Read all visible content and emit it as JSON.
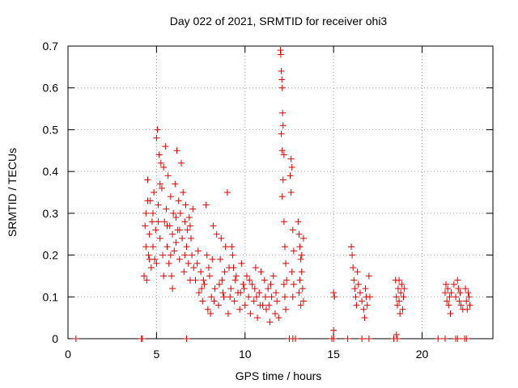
{
  "chart_data": {
    "type": "scatter",
    "title": "Day 022 of 2021, SRMTID for receiver ohi3",
    "xlabel": "GPS time / hours",
    "ylabel": "SRMTID / TECUs",
    "xlim": [
      0,
      24
    ],
    "ylim": [
      0,
      0.7
    ],
    "xticks": [
      0,
      5,
      10,
      15,
      20
    ],
    "yticks": [
      0,
      0.1,
      0.2,
      0.3,
      0.4,
      0.5,
      0.6,
      0.7
    ],
    "grid": true,
    "marker": "+",
    "series_color": "#e00000",
    "series": [
      {
        "name": "SRMTID",
        "points": [
          [
            0.45,
            0.0
          ],
          [
            4.15,
            0.0
          ],
          [
            4.2,
            0.0
          ],
          [
            6.7,
            0.0
          ],
          [
            12.5,
            0.0
          ],
          [
            12.7,
            0.0
          ],
          [
            12.85,
            0.0
          ],
          [
            14.9,
            0.0
          ],
          [
            15.0,
            0.0
          ],
          [
            15.8,
            0.0
          ],
          [
            16.6,
            0.0
          ],
          [
            17.0,
            0.0
          ],
          [
            18.4,
            0.0
          ],
          [
            18.6,
            0.0
          ],
          [
            20.9,
            0.0
          ],
          [
            21.3,
            0.0
          ],
          [
            21.9,
            0.0
          ],
          [
            22.0,
            0.0
          ],
          [
            22.4,
            0.0
          ],
          [
            22.5,
            0.0
          ],
          [
            15.0,
            0.02
          ],
          [
            18.55,
            0.01
          ],
          [
            4.3,
            0.15
          ],
          [
            4.35,
            0.27
          ],
          [
            4.4,
            0.3
          ],
          [
            4.45,
            0.14
          ],
          [
            4.5,
            0.38
          ],
          [
            4.55,
            0.2
          ],
          [
            4.6,
            0.25
          ],
          [
            4.65,
            0.33
          ],
          [
            4.7,
            0.17
          ],
          [
            4.75,
            0.28
          ],
          [
            4.8,
            0.22
          ],
          [
            4.85,
            0.35
          ],
          [
            4.9,
            0.19
          ],
          [
            4.95,
            0.26
          ],
          [
            5.0,
            0.48
          ],
          [
            5.05,
            0.5
          ],
          [
            5.1,
            0.32
          ],
          [
            5.15,
            0.44
          ],
          [
            5.2,
            0.24
          ],
          [
            5.25,
            0.42
          ],
          [
            5.3,
            0.36
          ],
          [
            5.35,
            0.2
          ],
          [
            5.4,
            0.41
          ],
          [
            5.45,
            0.28
          ],
          [
            5.5,
            0.46
          ],
          [
            5.55,
            0.31
          ],
          [
            5.6,
            0.22
          ],
          [
            5.65,
            0.39
          ],
          [
            5.7,
            0.18
          ],
          [
            5.75,
            0.27
          ],
          [
            5.8,
            0.34
          ],
          [
            5.85,
            0.15
          ],
          [
            5.9,
            0.25
          ],
          [
            5.95,
            0.3
          ],
          [
            6.0,
            0.21
          ],
          [
            6.05,
            0.37
          ],
          [
            6.1,
            0.29
          ],
          [
            6.15,
            0.45
          ],
          [
            6.2,
            0.26
          ],
          [
            6.25,
            0.33
          ],
          [
            6.3,
            0.19
          ],
          [
            6.35,
            0.3
          ],
          [
            6.4,
            0.42
          ],
          [
            6.45,
            0.24
          ],
          [
            6.5,
            0.35
          ],
          [
            6.55,
            0.16
          ],
          [
            6.6,
            0.28
          ],
          [
            6.65,
            0.32
          ],
          [
            6.7,
            0.22
          ],
          [
            6.75,
            0.26
          ],
          [
            6.8,
            0.18
          ],
          [
            6.85,
            0.29
          ],
          [
            6.9,
            0.14
          ],
          [
            6.95,
            0.24
          ],
          [
            7.0,
            0.2
          ],
          [
            7.05,
            0.31
          ],
          [
            7.1,
            0.17
          ],
          [
            4.5,
            0.33
          ],
          [
            4.8,
            0.3
          ],
          [
            5.2,
            0.37
          ],
          [
            5.6,
            0.27
          ],
          [
            6.1,
            0.23
          ],
          [
            6.6,
            0.2
          ],
          [
            4.4,
            0.22
          ],
          [
            5.0,
            0.18
          ],
          [
            5.4,
            0.15
          ],
          [
            5.9,
            0.12
          ],
          [
            6.3,
            0.26
          ],
          [
            6.9,
            0.27
          ],
          [
            4.6,
            0.19
          ],
          [
            5.1,
            0.28
          ],
          [
            5.8,
            0.2
          ],
          [
            7.2,
            0.14
          ],
          [
            7.3,
            0.18
          ],
          [
            7.4,
            0.11
          ],
          [
            7.5,
            0.16
          ],
          [
            7.6,
            0.09
          ],
          [
            7.7,
            0.13
          ],
          [
            7.8,
            0.32
          ],
          [
            7.85,
            0.2
          ],
          [
            7.9,
            0.07
          ],
          [
            8.0,
            0.15
          ],
          [
            8.1,
            0.1
          ],
          [
            8.2,
            0.27
          ],
          [
            8.3,
            0.12
          ],
          [
            8.4,
            0.25
          ],
          [
            8.5,
            0.08
          ],
          [
            8.6,
            0.19
          ],
          [
            8.7,
            0.14
          ],
          [
            8.8,
            0.1
          ],
          [
            8.9,
            0.22
          ],
          [
            9.0,
            0.35
          ],
          [
            9.05,
            0.06
          ],
          [
            9.1,
            0.17
          ],
          [
            9.2,
            0.12
          ],
          [
            9.3,
            0.2
          ],
          [
            9.4,
            0.09
          ],
          [
            9.5,
            0.15
          ],
          [
            9.6,
            0.11
          ],
          [
            9.7,
            0.07
          ],
          [
            9.8,
            0.18
          ],
          [
            9.9,
            0.13
          ],
          [
            10.0,
            0.08
          ],
          [
            7.35,
            0.21
          ],
          [
            7.65,
            0.14
          ],
          [
            7.95,
            0.17
          ],
          [
            8.25,
            0.09
          ],
          [
            8.55,
            0.13
          ],
          [
            8.85,
            0.16
          ],
          [
            9.15,
            0.1
          ],
          [
            9.45,
            0.14
          ],
          [
            9.75,
            0.11
          ],
          [
            7.55,
            0.12
          ],
          [
            8.15,
            0.19
          ],
          [
            8.75,
            0.11
          ],
          [
            9.35,
            0.17
          ],
          [
            9.95,
            0.12
          ],
          [
            8.65,
            0.24
          ],
          [
            9.25,
            0.22
          ],
          [
            8.05,
            0.06
          ],
          [
            10.1,
            0.15
          ],
          [
            10.2,
            0.1
          ],
          [
            10.3,
            0.06
          ],
          [
            10.4,
            0.13
          ],
          [
            10.5,
            0.09
          ],
          [
            10.6,
            0.17
          ],
          [
            10.7,
            0.05
          ],
          [
            10.8,
            0.11
          ],
          [
            10.9,
            0.16
          ],
          [
            11.0,
            0.08
          ],
          [
            11.1,
            0.14
          ],
          [
            11.2,
            0.07
          ],
          [
            11.3,
            0.12
          ],
          [
            11.4,
            0.04
          ],
          [
            11.5,
            0.1
          ],
          [
            11.6,
            0.15
          ],
          [
            11.7,
            0.06
          ],
          [
            11.8,
            0.09
          ],
          [
            11.9,
            0.05
          ],
          [
            10.25,
            0.14
          ],
          [
            10.55,
            0.12
          ],
          [
            10.85,
            0.08
          ],
          [
            11.15,
            0.1
          ],
          [
            11.45,
            0.13
          ],
          [
            11.75,
            0.11
          ],
          [
            10.65,
            0.1
          ],
          [
            11.35,
            0.08
          ],
          [
            12.0,
            0.69
          ],
          [
            12.02,
            0.68
          ],
          [
            12.05,
            0.64
          ],
          [
            12.08,
            0.62
          ],
          [
            12.1,
            0.6
          ],
          [
            12.12,
            0.54
          ],
          [
            12.15,
            0.51
          ],
          [
            12.05,
            0.49
          ],
          [
            12.1,
            0.45
          ],
          [
            12.2,
            0.44
          ],
          [
            12.15,
            0.38
          ],
          [
            12.1,
            0.34
          ],
          [
            12.2,
            0.28
          ],
          [
            12.25,
            0.22
          ],
          [
            12.3,
            0.18
          ],
          [
            12.2,
            0.13
          ],
          [
            12.25,
            0.1
          ],
          [
            12.3,
            0.07
          ],
          [
            12.35,
            0.14
          ],
          [
            12.6,
            0.43
          ],
          [
            12.65,
            0.41
          ],
          [
            12.55,
            0.39
          ],
          [
            12.6,
            0.35
          ],
          [
            12.7,
            0.26
          ],
          [
            12.75,
            0.21
          ],
          [
            12.65,
            0.16
          ],
          [
            12.7,
            0.1
          ],
          [
            12.75,
            0.13
          ],
          [
            13.0,
            0.28
          ],
          [
            13.05,
            0.25
          ],
          [
            13.1,
            0.22
          ],
          [
            13.15,
            0.19
          ],
          [
            13.2,
            0.16
          ],
          [
            13.25,
            0.12
          ],
          [
            13.3,
            0.09
          ],
          [
            13.1,
            0.14
          ],
          [
            13.2,
            0.2
          ],
          [
            13.05,
            0.11
          ],
          [
            13.3,
            0.24
          ],
          [
            13.15,
            0.08
          ],
          [
            15.0,
            0.11
          ],
          [
            15.05,
            0.1
          ],
          [
            16.0,
            0.22
          ],
          [
            16.05,
            0.2
          ],
          [
            16.1,
            0.17
          ],
          [
            16.15,
            0.14
          ],
          [
            16.2,
            0.12
          ],
          [
            16.25,
            0.1
          ],
          [
            16.3,
            0.08
          ],
          [
            16.35,
            0.16
          ],
          [
            16.4,
            0.13
          ],
          [
            16.5,
            0.11
          ],
          [
            16.6,
            0.09
          ],
          [
            16.7,
            0.07
          ],
          [
            16.75,
            0.05
          ],
          [
            16.8,
            0.12
          ],
          [
            16.85,
            0.1
          ],
          [
            16.9,
            0.08
          ],
          [
            17.0,
            0.15
          ],
          [
            17.05,
            0.1
          ],
          [
            18.5,
            0.14
          ],
          [
            18.55,
            0.1
          ],
          [
            18.6,
            0.08
          ],
          [
            18.65,
            0.12
          ],
          [
            18.7,
            0.09
          ],
          [
            18.75,
            0.06
          ],
          [
            18.8,
            0.11
          ],
          [
            18.85,
            0.13
          ],
          [
            18.9,
            0.07
          ],
          [
            18.95,
            0.1
          ],
          [
            19.0,
            0.12
          ],
          [
            18.7,
            0.14
          ],
          [
            21.3,
            0.11
          ],
          [
            21.35,
            0.13
          ],
          [
            21.4,
            0.09
          ],
          [
            21.45,
            0.12
          ],
          [
            21.5,
            0.08
          ],
          [
            21.55,
            0.1
          ],
          [
            21.6,
            0.06
          ],
          [
            21.65,
            0.11
          ],
          [
            21.8,
            0.13
          ],
          [
            21.9,
            0.1
          ],
          [
            22.0,
            0.14
          ],
          [
            22.05,
            0.12
          ],
          [
            22.1,
            0.09
          ],
          [
            22.15,
            0.11
          ],
          [
            22.2,
            0.08
          ],
          [
            22.3,
            0.07
          ],
          [
            22.45,
            0.12
          ],
          [
            22.5,
            0.09
          ],
          [
            22.55,
            0.07
          ],
          [
            22.6,
            0.11
          ],
          [
            22.65,
            0.1
          ],
          [
            22.7,
            0.08
          ]
        ]
      }
    ]
  }
}
